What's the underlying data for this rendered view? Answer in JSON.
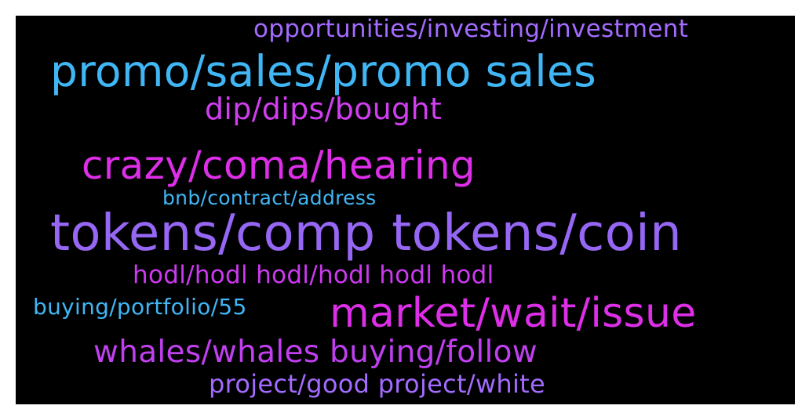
{
  "words": [
    {
      "text": "opportunities/investing/investment",
      "color": "#a36bff"
    },
    {
      "text": "promo/sales/promo sales",
      "color": "#40b6f5"
    },
    {
      "text": "dip/dips/bought",
      "color": "#d13ef0"
    },
    {
      "text": "crazy/coma/hearing",
      "color": "#dd2ee8"
    },
    {
      "text": "bnb/contract/address",
      "color": "#40b6f5"
    },
    {
      "text": "tokens/comp tokens/coin",
      "color": "#9666f5"
    },
    {
      "text": "hodl/hodl hodl/hodl hodl hodl",
      "color": "#cc39f0"
    },
    {
      "text": "buying/portfolio/55",
      "color": "#40b6f5"
    },
    {
      "text": "market/wait/issue",
      "color": "#dd2ee8"
    },
    {
      "text": "whales/whales buying/follow",
      "color": "#c040f0"
    },
    {
      "text": "project/good project/white",
      "color": "#a36bff"
    }
  ]
}
